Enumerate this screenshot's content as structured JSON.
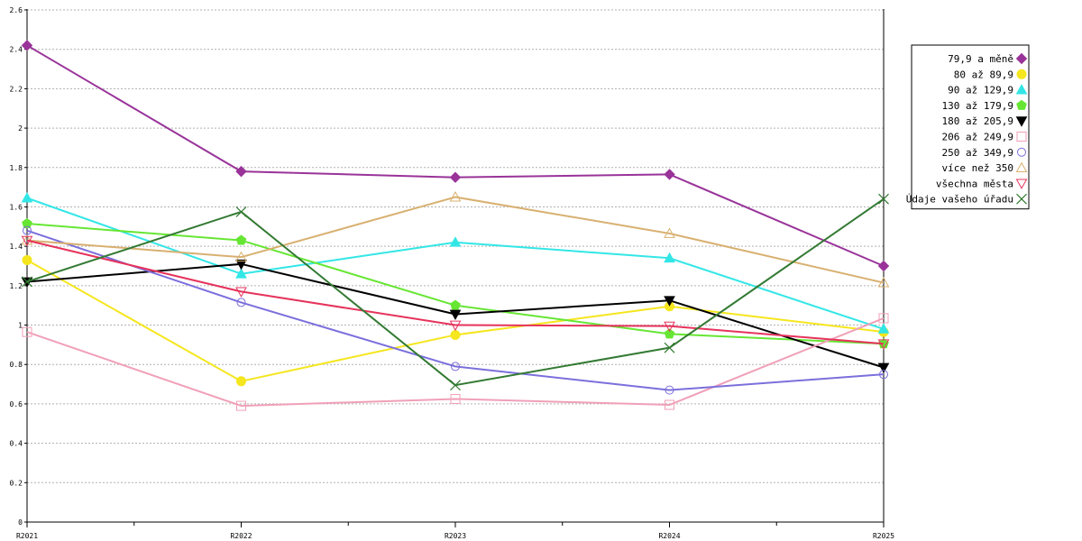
{
  "chart_data": {
    "type": "line",
    "title": "",
    "xlabel": "",
    "ylabel": "",
    "x": [
      "R2021",
      "R2022",
      "R2023",
      "R2024",
      "R2025"
    ],
    "ylim": [
      0,
      2.6
    ],
    "yticks": [
      "0",
      "0.2",
      "0.4",
      "0.6",
      "0.8",
      "1",
      "1.2",
      "1.4",
      "1.6",
      "1.8",
      "2",
      "2.2",
      "2.4",
      "2.6"
    ],
    "grid": "horizontal-dashed",
    "legend_position": "right",
    "series": [
      {
        "name": "79,9 a měně",
        "color": "#993399",
        "marker": "diamond-filled",
        "values": [
          2.42,
          1.78,
          1.75,
          1.765,
          1.3
        ]
      },
      {
        "name": "80 až 89,9",
        "color": "#f5e61e",
        "marker": "circle-filled",
        "values": [
          1.33,
          0.715,
          0.95,
          1.095,
          0.965
        ]
      },
      {
        "name": "90 až 129,9",
        "color": "#33e6e6",
        "marker": "triangle-up-filled",
        "values": [
          1.645,
          1.26,
          1.42,
          1.34,
          0.98
        ]
      },
      {
        "name": "130 až 179,9",
        "color": "#66e633",
        "marker": "pentagon-filled",
        "values": [
          1.515,
          1.43,
          1.1,
          0.955,
          0.905
        ]
      },
      {
        "name": "180 až 205,9",
        "color": "#000000",
        "marker": "triangle-down-filled",
        "values": [
          1.22,
          1.31,
          1.055,
          1.125,
          0.785
        ]
      },
      {
        "name": "206 až 249,9",
        "color": "#f0a0b8",
        "marker": "square-open",
        "values": [
          0.965,
          0.59,
          0.625,
          0.595,
          1.035
        ]
      },
      {
        "name": "250 až 349,9",
        "color": "#7b6fdc",
        "marker": "circle-open",
        "values": [
          1.48,
          1.115,
          0.79,
          0.67,
          0.75
        ]
      },
      {
        "name": "více než 350",
        "color": "#d8b070",
        "marker": "triangle-up-open",
        "values": [
          1.43,
          1.345,
          1.65,
          1.465,
          1.215
        ]
      },
      {
        "name": "všechna města",
        "color": "#e6335c",
        "marker": "triangle-down-open",
        "values": [
          1.43,
          1.17,
          1.0,
          0.995,
          0.905
        ]
      },
      {
        "name": "Údaje vašeho úřadu",
        "color": "#337a33",
        "marker": "cross",
        "values": [
          1.22,
          1.575,
          0.695,
          0.885,
          1.64
        ]
      }
    ]
  }
}
